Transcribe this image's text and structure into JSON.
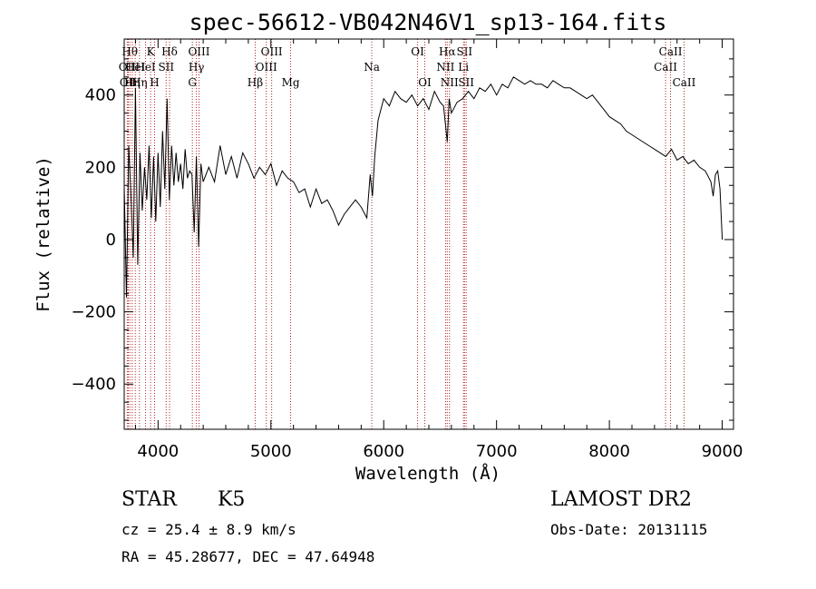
{
  "chart_data": {
    "type": "line",
    "title": "spec-56612-VB042N46V1_sp13-164.fits",
    "xlabel": "Wavelength (Å)",
    "ylabel": "Flux (relative)",
    "xlim": [
      3700,
      9100
    ],
    "ylim": [
      -525,
      555
    ],
    "x_ticks": [
      4000,
      5000,
      6000,
      7000,
      8000,
      9000
    ],
    "y_ticks": [
      -400,
      -200,
      0,
      200,
      400
    ],
    "x_tick_labels": [
      "4000",
      "5000",
      "6000",
      "7000",
      "8000",
      "9000"
    ],
    "y_tick_labels": [
      "−400",
      "−200",
      "0",
      "200",
      "400"
    ],
    "grid": false,
    "series": [
      {
        "color": "#000000",
        "x": [
          3700,
          3720,
          3740,
          3760,
          3780,
          3800,
          3820,
          3840,
          3860,
          3880,
          3900,
          3920,
          3940,
          3960,
          3980,
          4000,
          4020,
          4040,
          4060,
          4080,
          4100,
          4120,
          4140,
          4160,
          4180,
          4200,
          4220,
          4240,
          4260,
          4280,
          4300,
          4320,
          4340,
          4360,
          4380,
          4400,
          4450,
          4500,
          4550,
          4600,
          4650,
          4700,
          4750,
          4800,
          4850,
          4900,
          4950,
          5000,
          5050,
          5100,
          5150,
          5200,
          5250,
          5300,
          5350,
          5400,
          5450,
          5500,
          5550,
          5600,
          5650,
          5700,
          5750,
          5800,
          5850,
          5880,
          5900,
          5920,
          5950,
          6000,
          6050,
          6100,
          6150,
          6200,
          6250,
          6300,
          6350,
          6400,
          6450,
          6500,
          6530,
          6563,
          6580,
          6600,
          6650,
          6700,
          6750,
          6800,
          6850,
          6900,
          6950,
          7000,
          7050,
          7100,
          7150,
          7200,
          7250,
          7300,
          7350,
          7400,
          7450,
          7500,
          7550,
          7600,
          7650,
          7700,
          7750,
          7800,
          7850,
          7900,
          7950,
          8000,
          8050,
          8100,
          8150,
          8200,
          8250,
          8300,
          8350,
          8400,
          8450,
          8500,
          8550,
          8600,
          8650,
          8700,
          8750,
          8800,
          8850,
          8900,
          8920,
          8940,
          8960,
          8980,
          9000
        ],
        "y": [
          150,
          -160,
          260,
          120,
          -50,
          420,
          -70,
          240,
          80,
          200,
          110,
          260,
          60,
          230,
          50,
          240,
          90,
          300,
          140,
          390,
          110,
          260,
          150,
          240,
          160,
          210,
          140,
          250,
          170,
          190,
          180,
          20,
          230,
          -20,
          210,
          160,
          200,
          160,
          260,
          180,
          230,
          170,
          240,
          210,
          170,
          200,
          180,
          210,
          150,
          190,
          170,
          160,
          130,
          140,
          90,
          140,
          100,
          110,
          80,
          40,
          70,
          90,
          110,
          90,
          60,
          180,
          120,
          230,
          330,
          390,
          370,
          410,
          390,
          380,
          400,
          370,
          390,
          360,
          410,
          380,
          370,
          270,
          390,
          350,
          380,
          390,
          410,
          390,
          420,
          410,
          430,
          400,
          430,
          420,
          450,
          440,
          430,
          440,
          430,
          430,
          420,
          440,
          430,
          420,
          420,
          410,
          400,
          390,
          400,
          380,
          360,
          340,
          330,
          320,
          300,
          290,
          280,
          270,
          260,
          250,
          240,
          230,
          250,
          220,
          230,
          210,
          220,
          200,
          190,
          160,
          120,
          180,
          190,
          140,
          0
        ]
      }
    ],
    "line_markers": [
      {
        "x": 3727,
        "label": "OII",
        "row": 2
      },
      {
        "x": 3736,
        "label": "OII",
        "row": 3
      },
      {
        "x": 3750,
        "label": "Hθ",
        "row": 1
      },
      {
        "x": 3771,
        "label": "Hη",
        "row": 3
      },
      {
        "x": 3798,
        "label": "HeI",
        "row": 2
      },
      {
        "x": 3835,
        "label": "Hη",
        "row": 3
      },
      {
        "x": 3889,
        "label": "HeI",
        "row": 2
      },
      {
        "x": 3934,
        "label": "K",
        "row": 1
      },
      {
        "x": 3969,
        "label": "H",
        "row": 3
      },
      {
        "x": 4072,
        "label": "SII",
        "row": 2
      },
      {
        "x": 4102,
        "label": "Hδ",
        "row": 1
      },
      {
        "x": 4304,
        "label": "G",
        "row": 3
      },
      {
        "x": 4340,
        "label": "Hγ",
        "row": 2
      },
      {
        "x": 4363,
        "label": "OIII",
        "row": 1
      },
      {
        "x": 4861,
        "label": "Hβ",
        "row": 3
      },
      {
        "x": 4959,
        "label": "OIII",
        "row": 2
      },
      {
        "x": 5007,
        "label": "OIII",
        "row": 1
      },
      {
        "x": 5175,
        "label": "Mg",
        "row": 3
      },
      {
        "x": 5894,
        "label": "Na",
        "row": 2
      },
      {
        "x": 6300,
        "label": "OI",
        "row": 1
      },
      {
        "x": 6364,
        "label": "OI",
        "row": 3
      },
      {
        "x": 6548,
        "label": "NII",
        "row": 2
      },
      {
        "x": 6563,
        "label": "Hα",
        "row": 1
      },
      {
        "x": 6583,
        "label": "NII",
        "row": 3
      },
      {
        "x": 6707,
        "label": "Li",
        "row": 2
      },
      {
        "x": 6716,
        "label": "SII",
        "row": 1
      },
      {
        "x": 6731,
        "label": "SII",
        "row": 3
      },
      {
        "x": 8498,
        "label": "CaII",
        "row": 2
      },
      {
        "x": 8542,
        "label": "CaII",
        "row": 1
      },
      {
        "x": 8662,
        "label": "CaII",
        "row": 3
      }
    ],
    "marker_color": "#b22222"
  },
  "info": {
    "object_class": "STAR",
    "subclass": "K5",
    "survey": "LAMOST DR2",
    "cz_line": "cz = 25.4 ± 8.9 km/s",
    "obs_date_line": "Obs-Date: 20131115",
    "coords_line": "RA =  45.28677, DEC =  47.64948"
  }
}
